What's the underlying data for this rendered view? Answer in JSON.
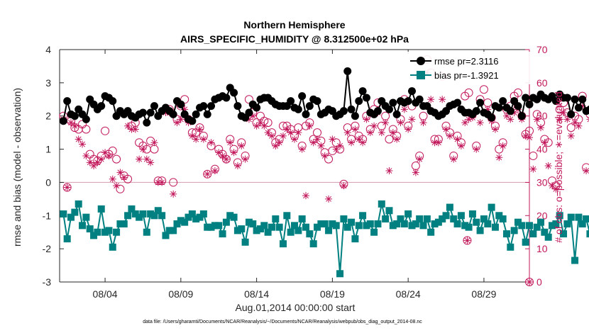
{
  "chart_data": {
    "type": "line",
    "title": "Northern Hemisphere",
    "subtitle": "AIRS_SPECIFIC_HUMIDITY @ 8.312500e+02 hPa",
    "xlabel": "Aug.01,2014 00:00:00 start",
    "ylabel_left": "rmse and bias (model - observation)",
    "ylabel_right": "# of obs: o=possible; ∗=evaluated",
    "xlim": [
      1.0,
      32.0
    ],
    "ylim_left": [
      -3,
      4
    ],
    "ylim_right": [
      0,
      70
    ],
    "x_ticks": [
      4,
      9,
      14,
      19,
      24,
      29
    ],
    "x_tick_labels": [
      "08/04",
      "08/09",
      "08/14",
      "08/19",
      "08/24",
      "08/29"
    ],
    "y_ticks_left": [
      "-3",
      "-2",
      "-1",
      "0",
      "1",
      "2",
      "3",
      "4"
    ],
    "y_ticks_right": [
      "0",
      "10",
      "20",
      "30",
      "40",
      "50",
      "60",
      "70"
    ],
    "legend_position": "top-right",
    "footnote": "data file: /Users/gharamti/Documents/NCAR/Reanalysis/~/Documents/NCAR/Reanalysis/webpub/obs_diag_output_2014-08.nc",
    "series": [
      {
        "name": "rmse",
        "legend_label": "rmse pr=2.3116",
        "axis": "left",
        "color": "#000000",
        "marker": "circle",
        "x_start": 1.25,
        "x_step": 0.25,
        "values": [
          1.85,
          2.45,
          2.05,
          2.0,
          2.2,
          2.05,
          1.9,
          2.5,
          2.35,
          2.2,
          2.3,
          2.6,
          2.55,
          2.45,
          2.0,
          2.15,
          2.05,
          2.15,
          2.0,
          1.95,
          2.05,
          2.1,
          1.8,
          2.1,
          2.3,
          2.0,
          2.15,
          2.25,
          2.15,
          2.05,
          2.45,
          2.35,
          2.05,
          1.9,
          1.85,
          2.05,
          2.25,
          2.3,
          2.05,
          2.3,
          2.5,
          2.55,
          2.6,
          2.55,
          2.85,
          2.7,
          2.3,
          2.0,
          1.95,
          2.1,
          2.35,
          2.25,
          2.5,
          2.55,
          2.55,
          2.45,
          2.35,
          2.3,
          2.3,
          2.3,
          2.45,
          2.25,
          2.2,
          2.6,
          2.05,
          2.3,
          2.5,
          2.45,
          2.05,
          2.1,
          2.2,
          2.15,
          2.0,
          2.05,
          2.15,
          3.35,
          2.2,
          2.0,
          2.45,
          2.75,
          2.55,
          2.1,
          2.05,
          2.15,
          2.45,
          2.3,
          2.2,
          2.4,
          2.05,
          2.45,
          2.4,
          2.45,
          2.75,
          2.4,
          2.5,
          2.3,
          2.3,
          2.15,
          2.1,
          2.0,
          2.05,
          2.15,
          2.3,
          2.35,
          2.4,
          2.2,
          2.1,
          2.1,
          2.05,
          2.15,
          2.4,
          2.1,
          2.05,
          1.95,
          2.3,
          2.25,
          2.45,
          2.25,
          2.15,
          2.45,
          2.3,
          2.0,
          2.55,
          2.35,
          2.55,
          2.5,
          2.65,
          2.55,
          2.5,
          2.6,
          2.45,
          2.65,
          2.55,
          2.55,
          2.05,
          2.5,
          2.25,
          2.5,
          2.15,
          2.2,
          2.05,
          2.5,
          2.55,
          2.8
        ]
      },
      {
        "name": "bias",
        "legend_label": "bias pr=-1.3921",
        "axis": "left",
        "color": "#008080",
        "marker": "square",
        "x_start": 1.25,
        "x_step": 0.25,
        "values": [
          -0.95,
          -1.7,
          -1.05,
          -0.9,
          -0.65,
          -1.3,
          -1.05,
          -1.4,
          -1.6,
          -1.5,
          -0.8,
          -1.5,
          -1.45,
          -1.95,
          -1.5,
          -1.25,
          -1.25,
          -1.0,
          -0.8,
          -0.95,
          -1.05,
          -0.95,
          -1.5,
          -0.95,
          -1.0,
          -0.85,
          -1.0,
          -1.6,
          -1.45,
          -1.45,
          -1.25,
          -1.15,
          -1.2,
          -1.05,
          -0.95,
          -1.1,
          -1.05,
          -0.95,
          -1.35,
          -1.35,
          -1.3,
          -1.3,
          -1.55,
          -1.2,
          -1.0,
          -1.05,
          -1.45,
          -1.4,
          -1.8,
          -1.2,
          -1.25,
          -1.45,
          -1.4,
          -1.3,
          -1.5,
          -1.35,
          -1.1,
          -1.35,
          -1.85,
          -1.0,
          -1.5,
          -1.3,
          -1.45,
          -1.1,
          -1.35,
          -1.55,
          -1.85,
          -1.35,
          -1.25,
          -1.25,
          -1.45,
          -1.25,
          -1.3,
          -2.75,
          -1.1,
          -1.35,
          -1.2,
          -1.7,
          -1.3,
          -1.0,
          -1.3,
          -1.25,
          -1.5,
          -1.25,
          -0.65,
          -1.1,
          -0.85,
          -1.3,
          -1.25,
          -1.1,
          -1.25,
          -0.95,
          -1.3,
          -1.25,
          -1.1,
          -1.3,
          -1.1,
          -1.5,
          -1.25,
          -1.2,
          -1.1,
          -1.0,
          -0.75,
          -1.1,
          -1.25,
          -1.0,
          -1.3,
          -1.35,
          -0.95,
          -1.2,
          -1.45,
          -1.1,
          -1.25,
          -0.75,
          -1.35,
          -1.0,
          -1.1,
          -1.55,
          -1.95,
          -1.45,
          -1.2,
          -1.3,
          -1.8,
          -1.3,
          -1.55,
          -1.35,
          -1.2,
          -1.5,
          -1.65,
          -1.3,
          -1.25,
          -1.0,
          -1.55,
          -1.25,
          -1.05,
          -2.35,
          -1.05,
          -1.25,
          -1.1,
          -1.55,
          -1.5,
          -1.6,
          -1.65
        ]
      },
      {
        "name": "possible",
        "axis": "right",
        "color": "#c2185b",
        "marker": "open-circle",
        "x_start": 1.25,
        "x_step": 0.25,
        "values": [
          50,
          28.5,
          48.5,
          46.5,
          46,
          47.5,
          46,
          38.5,
          37,
          36.5,
          38,
          45.5,
          38.5,
          39.5,
          37,
          28,
          32,
          31,
          47,
          48,
          42,
          41,
          40,
          42.5,
          40,
          30.5,
          30.5,
          52,
          52,
          30,
          49,
          53,
          55,
          49,
          45,
          45,
          46.5,
          44,
          32.5,
          41,
          34,
          40,
          38.5,
          37,
          43,
          40,
          36,
          42,
          38,
          55,
          51,
          48,
          50,
          48.5,
          48,
          45,
          42,
          43,
          47,
          47,
          46,
          44,
          46.5,
          41,
          47,
          48,
          43,
          45,
          42.5,
          39,
          37,
          39.5,
          42,
          40,
          29.5,
          46.5,
          43,
          47,
          44,
          43,
          50,
          46,
          52,
          54,
          47,
          50,
          43,
          46,
          44,
          49,
          55,
          47,
          53,
          35,
          38,
          50,
          67,
          63,
          43,
          43,
          62,
          47,
          45,
          38,
          44,
          42,
          56,
          57,
          50.5,
          41,
          55,
          58,
          54,
          49.5,
          47,
          40,
          42,
          52,
          53,
          56,
          57,
          50,
          44.5,
          45.5,
          38,
          50.5,
          48,
          43,
          42,
          30.5,
          29,
          52,
          54,
          51,
          46.5,
          50,
          49,
          56,
          34.5,
          50.5,
          54,
          58,
          57
        ]
      },
      {
        "name": "evaluated",
        "axis": "right",
        "color": "#c2185b",
        "marker": "asterisk",
        "x_start": 1.25,
        "x_step": 0.25,
        "values": [
          49,
          28.5,
          48,
          47,
          43,
          41.5,
          38,
          36,
          35,
          36,
          37,
          39,
          38,
          31,
          29,
          33,
          31.5,
          47,
          46,
          46,
          37,
          40,
          37,
          36,
          42,
          30,
          30,
          51,
          51,
          26.5,
          48,
          49,
          52,
          48,
          44,
          43,
          46,
          43,
          32.5,
          42,
          33.5,
          39,
          38,
          37,
          42,
          39,
          35,
          41,
          37,
          49,
          50,
          47,
          48,
          47,
          45,
          44,
          41,
          42,
          44,
          46,
          45,
          43,
          45,
          40,
          26,
          47,
          42,
          43,
          41,
          38,
          25,
          43,
          40,
          41,
          29,
          45,
          42,
          46,
          43,
          42,
          49,
          45,
          47,
          51,
          45,
          48,
          33.5,
          45,
          43,
          48,
          52,
          46,
          49,
          33,
          37,
          48,
          63,
          55,
          42,
          42,
          55,
          46,
          44,
          37,
          43,
          41,
          48,
          49,
          49.5,
          40,
          48,
          51,
          52,
          48.5,
          46,
          37.5,
          41,
          50,
          49,
          51,
          52,
          49,
          44,
          43.5,
          34,
          49,
          46.5,
          42,
          35,
          29,
          28,
          49,
          51,
          49,
          44,
          48,
          47,
          53,
          33.5,
          49,
          51,
          54,
          53
        ]
      },
      {
        "name": "evaluated_tail",
        "axis": "right",
        "color": "#c2185b",
        "marker": "circle-asterisk",
        "points": [
          [
            27.9,
            12.5
          ],
          [
            32.0,
            0
          ]
        ]
      }
    ]
  }
}
